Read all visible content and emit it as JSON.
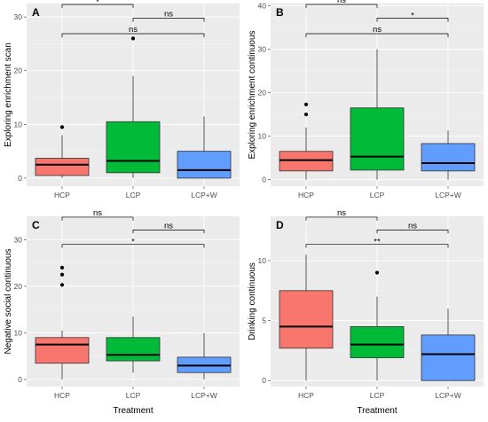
{
  "chart_data": [
    {
      "type": "box",
      "panel_label": "A",
      "ylabel": "Exploring enrichment scan",
      "xlabel": "",
      "categories": [
        "HCP",
        "LCP",
        "LCP+W"
      ],
      "ylim": [
        -1.5,
        32.5
      ],
      "yticks": [
        0,
        10,
        20,
        30
      ],
      "colors": [
        "#F8766D",
        "#00BA38",
        "#619CFF"
      ],
      "boxes": [
        {
          "group": "HCP",
          "min": 0,
          "q1": 0.5,
          "median": 2.5,
          "q3": 3.7,
          "max": 8,
          "outliers": [
            9.5
          ]
        },
        {
          "group": "LCP",
          "min": 0,
          "q1": 1,
          "median": 3.2,
          "q3": 10.5,
          "max": 19,
          "outliers": [
            26
          ]
        },
        {
          "group": "LCP+W",
          "min": 0,
          "q1": 0,
          "median": 1.5,
          "q3": 5,
          "max": 11.5,
          "outliers": []
        }
      ],
      "comparisons": [
        {
          "groups": [
            "HCP",
            "LCP"
          ],
          "label": "*"
        },
        {
          "groups": [
            "LCP",
            "LCP+W"
          ],
          "label": "ns"
        },
        {
          "groups": [
            "HCP",
            "LCP+W"
          ],
          "label": "ns"
        }
      ]
    },
    {
      "type": "box",
      "panel_label": "B",
      "ylabel": "Exploring enrichment continuous",
      "xlabel": "",
      "categories": [
        "HCP",
        "LCP",
        "LCP+W"
      ],
      "ylim": [
        -1.5,
        40.5
      ],
      "yticks": [
        0,
        10,
        20,
        30,
        40
      ],
      "colors": [
        "#F8766D",
        "#00BA38",
        "#619CFF"
      ],
      "boxes": [
        {
          "group": "HCP",
          "min": 0,
          "q1": 2,
          "median": 4.5,
          "q3": 6.5,
          "max": 12,
          "outliers": [
            15,
            17.3
          ]
        },
        {
          "group": "LCP",
          "min": 0,
          "q1": 2.2,
          "median": 5.3,
          "q3": 16.5,
          "max": 30,
          "outliers": []
        },
        {
          "group": "LCP+W",
          "min": 0,
          "q1": 2,
          "median": 3.8,
          "q3": 8.3,
          "max": 11.3,
          "outliers": []
        }
      ],
      "comparisons": [
        {
          "groups": [
            "HCP",
            "LCP"
          ],
          "label": "ns"
        },
        {
          "groups": [
            "LCP",
            "LCP+W"
          ],
          "label": "*"
        },
        {
          "groups": [
            "HCP",
            "LCP+W"
          ],
          "label": "ns"
        }
      ]
    },
    {
      "type": "box",
      "panel_label": "C",
      "ylabel": "Negative social continuous",
      "xlabel": "Treatment",
      "categories": [
        "HCP",
        "LCP",
        "LCP+W"
      ],
      "ylim": [
        -1.5,
        35
      ],
      "yticks": [
        0,
        10,
        20,
        30
      ],
      "colors": [
        "#F8766D",
        "#00BA38",
        "#619CFF"
      ],
      "boxes": [
        {
          "group": "HCP",
          "min": 0,
          "q1": 3.5,
          "median": 7.5,
          "q3": 9,
          "max": 10.5,
          "outliers": [
            20.3,
            22.5,
            24
          ]
        },
        {
          "group": "LCP",
          "min": 1.5,
          "q1": 4,
          "median": 5.3,
          "q3": 9,
          "max": 13.5,
          "outliers": []
        },
        {
          "group": "LCP+W",
          "min": 0,
          "q1": 1.5,
          "median": 3,
          "q3": 4.8,
          "max": 10,
          "outliers": []
        }
      ],
      "comparisons": [
        {
          "groups": [
            "HCP",
            "LCP"
          ],
          "label": "ns"
        },
        {
          "groups": [
            "LCP",
            "LCP+W"
          ],
          "label": "ns"
        },
        {
          "groups": [
            "HCP",
            "LCP+W"
          ],
          "label": "*"
        }
      ]
    },
    {
      "type": "box",
      "panel_label": "D",
      "ylabel": "Drinking continuous",
      "xlabel": "Treatment",
      "categories": [
        "HCP",
        "LCP",
        "LCP+W"
      ],
      "ylim": [
        -0.5,
        13.7
      ],
      "yticks": [
        0,
        5,
        10
      ],
      "colors": [
        "#F8766D",
        "#00BA38",
        "#619CFF"
      ],
      "boxes": [
        {
          "group": "HCP",
          "min": 0,
          "q1": 2.7,
          "median": 4.5,
          "q3": 7.5,
          "max": 10.5,
          "outliers": []
        },
        {
          "group": "LCP",
          "min": 0,
          "q1": 1.9,
          "median": 3,
          "q3": 4.5,
          "max": 7,
          "outliers": [
            9
          ]
        },
        {
          "group": "LCP+W",
          "min": 0,
          "q1": 0,
          "median": 2.2,
          "q3": 3.8,
          "max": 6,
          "outliers": []
        }
      ],
      "comparisons": [
        {
          "groups": [
            "HCP",
            "LCP"
          ],
          "label": "ns"
        },
        {
          "groups": [
            "LCP",
            "LCP+W"
          ],
          "label": "ns"
        },
        {
          "groups": [
            "HCP",
            "LCP+W"
          ],
          "label": "**"
        }
      ]
    }
  ]
}
